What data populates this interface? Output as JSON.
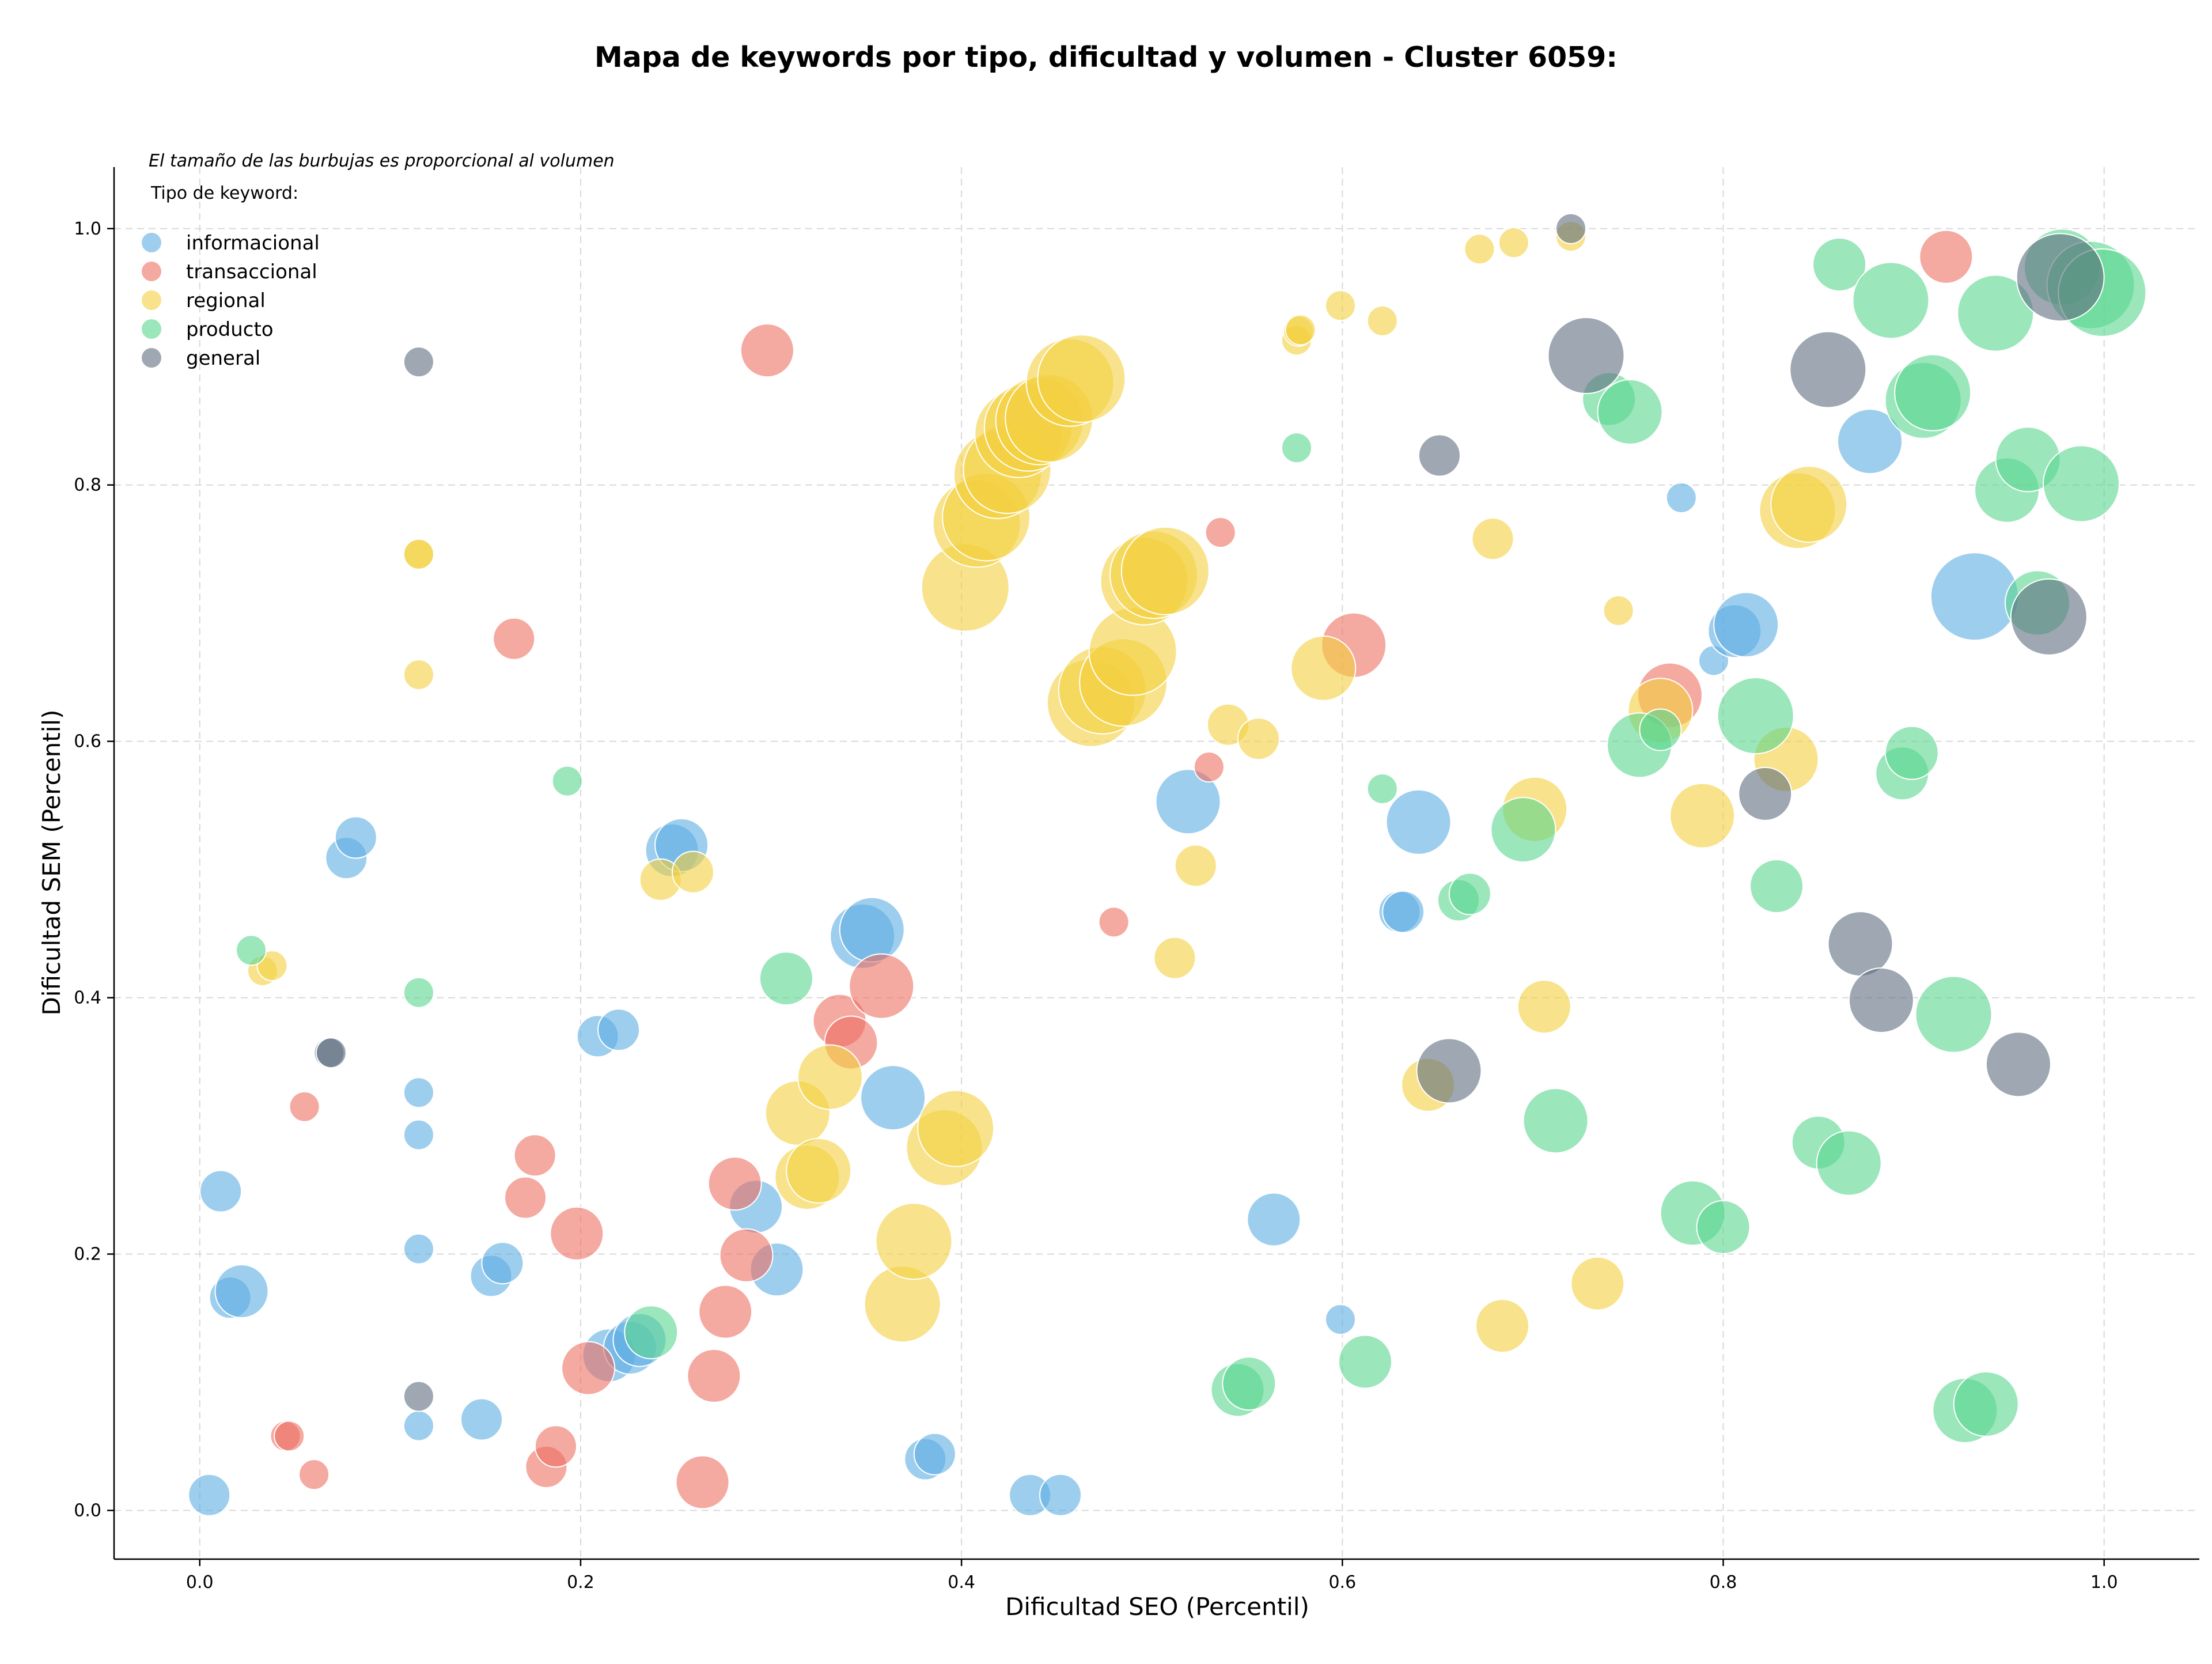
{
  "chart_data": {
    "type": "scatter",
    "title": "Mapa de keywords por tipo, dificultad y volumen - Cluster 6059:",
    "xlabel": "Dificultad SEO (Percentil)",
    "ylabel": "Dificultad SEM (Percentil)",
    "xlim": [
      -0.045,
      1.05
    ],
    "ylim": [
      -0.038,
      1.048
    ],
    "xticks": [
      "0.0",
      "0.2",
      "0.4",
      "0.6",
      "0.8",
      "1.0"
    ],
    "yticks": [
      "0.0",
      "0.2",
      "0.4",
      "0.6",
      "0.8",
      "1.0"
    ],
    "grid": true,
    "legend_position": "top-left",
    "legend_note": "El tamaño de las burbujas es proporcional al volumen",
    "legend_title": "Tipo de keyword:",
    "series": [
      {
        "name": "informacional",
        "color": "#5dade2",
        "points": [
          [
            0.005,
            0.012,
            2
          ],
          [
            0.011,
            0.249,
            2
          ],
          [
            0.016,
            0.166,
            2
          ],
          [
            0.022,
            0.171,
            3
          ],
          [
            0.077,
            0.509,
            2
          ],
          [
            0.082,
            0.525,
            2
          ],
          [
            0.115,
            0.326,
            1
          ],
          [
            0.115,
            0.293,
            1
          ],
          [
            0.115,
            0.204,
            1
          ],
          [
            0.115,
            0.066,
            1
          ],
          [
            0.148,
            0.071,
            2
          ],
          [
            0.153,
            0.183,
            2
          ],
          [
            0.159,
            0.193,
            2
          ],
          [
            0.209,
            0.37,
            2
          ],
          [
            0.215,
            0.121,
            3
          ],
          [
            0.22,
            0.375,
            2
          ],
          [
            0.226,
            0.127,
            3
          ],
          [
            0.231,
            0.133,
            3
          ],
          [
            0.248,
            0.515,
            3
          ],
          [
            0.253,
            0.519,
            3
          ],
          [
            0.292,
            0.237,
            3
          ],
          [
            0.303,
            0.188,
            3
          ],
          [
            0.348,
            0.448,
            4
          ],
          [
            0.353,
            0.453,
            4
          ],
          [
            0.364,
            0.322,
            4
          ],
          [
            0.381,
            0.04,
            2
          ],
          [
            0.386,
            0.044,
            2
          ],
          [
            0.436,
            0.012,
            2
          ],
          [
            0.452,
            0.012,
            2
          ],
          [
            0.519,
            0.553,
            4
          ],
          [
            0.564,
            0.227,
            3
          ],
          [
            0.599,
            0.149,
            1
          ],
          [
            0.63,
            0.467,
            2
          ],
          [
            0.632,
            0.467,
            2
          ],
          [
            0.64,
            0.537,
            4
          ],
          [
            0.778,
            0.79,
            1
          ],
          [
            0.795,
            0.663,
            1
          ],
          [
            0.806,
            0.686,
            3
          ],
          [
            0.812,
            0.691,
            4
          ],
          [
            0.877,
            0.834,
            4
          ],
          [
            0.932,
            0.713,
            6
          ]
        ]
      },
      {
        "name": "transaccional",
        "color": "#ec7063",
        "points": [
          [
            0.045,
            0.058,
            1
          ],
          [
            0.047,
            0.058,
            1
          ],
          [
            0.055,
            0.315,
            1
          ],
          [
            0.06,
            0.028,
            1
          ],
          [
            0.165,
            0.68,
            2
          ],
          [
            0.171,
            0.244,
            2
          ],
          [
            0.176,
            0.277,
            2
          ],
          [
            0.182,
            0.034,
            2
          ],
          [
            0.187,
            0.05,
            2
          ],
          [
            0.198,
            0.216,
            3
          ],
          [
            0.204,
            0.111,
            3
          ],
          [
            0.264,
            0.022,
            3
          ],
          [
            0.27,
            0.105,
            3
          ],
          [
            0.276,
            0.155,
            3
          ],
          [
            0.281,
            0.255,
            3
          ],
          [
            0.287,
            0.199,
            3
          ],
          [
            0.298,
            0.905,
            3
          ],
          [
            0.336,
            0.382,
            3
          ],
          [
            0.342,
            0.365,
            3
          ],
          [
            0.358,
            0.409,
            4
          ],
          [
            0.48,
            0.459,
            1
          ],
          [
            0.53,
            0.58,
            1
          ],
          [
            0.536,
            0.763,
            1
          ],
          [
            0.606,
            0.675,
            4
          ],
          [
            0.772,
            0.636,
            4
          ],
          [
            0.917,
            0.978,
            3
          ]
        ]
      },
      {
        "name": "regional",
        "color": "#f4d03f",
        "points": [
          [
            0.033,
            0.421,
            1
          ],
          [
            0.038,
            0.425,
            1
          ],
          [
            0.115,
            0.746,
            1
          ],
          [
            0.115,
            0.746,
            1
          ],
          [
            0.115,
            0.652,
            1
          ],
          [
            0.242,
            0.492,
            2
          ],
          [
            0.259,
            0.498,
            2
          ],
          [
            0.314,
            0.31,
            4
          ],
          [
            0.319,
            0.26,
            4
          ],
          [
            0.325,
            0.265,
            4
          ],
          [
            0.331,
            0.338,
            4
          ],
          [
            0.369,
            0.161,
            5
          ],
          [
            0.375,
            0.21,
            5
          ],
          [
            0.391,
            0.283,
            5
          ],
          [
            0.397,
            0.298,
            5
          ],
          [
            0.402,
            0.72,
            6
          ],
          [
            0.408,
            0.77,
            6
          ],
          [
            0.413,
            0.775,
            6
          ],
          [
            0.419,
            0.808,
            6
          ],
          [
            0.424,
            0.812,
            6
          ],
          [
            0.43,
            0.84,
            6
          ],
          [
            0.435,
            0.845,
            6
          ],
          [
            0.441,
            0.85,
            6
          ],
          [
            0.446,
            0.852,
            6
          ],
          [
            0.457,
            0.88,
            6
          ],
          [
            0.463,
            0.883,
            6
          ],
          [
            0.468,
            0.63,
            6
          ],
          [
            0.474,
            0.64,
            6
          ],
          [
            0.485,
            0.646,
            6
          ],
          [
            0.49,
            0.67,
            6
          ],
          [
            0.496,
            0.725,
            6
          ],
          [
            0.501,
            0.73,
            6
          ],
          [
            0.507,
            0.733,
            6
          ],
          [
            0.512,
            0.431,
            2
          ],
          [
            0.523,
            0.503,
            2
          ],
          [
            0.54,
            0.613,
            2
          ],
          [
            0.556,
            0.602,
            2
          ],
          [
            0.576,
            0.913,
            1
          ],
          [
            0.577,
            0.92,
            1
          ],
          [
            0.578,
            0.921,
            1
          ],
          [
            0.59,
            0.657,
            4
          ],
          [
            0.599,
            0.94,
            1
          ],
          [
            0.621,
            0.928,
            1
          ],
          [
            0.645,
            0.332,
            3
          ],
          [
            0.672,
            0.984,
            1
          ],
          [
            0.679,
            0.758,
            2
          ],
          [
            0.684,
            0.144,
            3
          ],
          [
            0.69,
            0.989,
            1
          ],
          [
            0.701,
            0.547,
            4
          ],
          [
            0.706,
            0.393,
            3
          ],
          [
            0.72,
            0.994,
            1
          ],
          [
            0.734,
            0.177,
            3
          ],
          [
            0.745,
            0.702,
            1
          ],
          [
            0.767,
            0.624,
            4
          ],
          [
            0.789,
            0.542,
            4
          ],
          [
            0.833,
            0.586,
            4
          ],
          [
            0.839,
            0.78,
            5
          ],
          [
            0.845,
            0.785,
            5
          ]
        ]
      },
      {
        "name": "producto",
        "color": "#58d68d",
        "points": [
          [
            0.027,
            0.437,
            1
          ],
          [
            0.115,
            0.404,
            1
          ],
          [
            0.193,
            0.569,
            1
          ],
          [
            0.237,
            0.139,
            3
          ],
          [
            0.308,
            0.415,
            3
          ],
          [
            0.545,
            0.094,
            3
          ],
          [
            0.551,
            0.099,
            3
          ],
          [
            0.576,
            0.829,
            1
          ],
          [
            0.612,
            0.116,
            3
          ],
          [
            0.621,
            0.563,
            1
          ],
          [
            0.661,
            0.476,
            2
          ],
          [
            0.667,
            0.481,
            2
          ],
          [
            0.695,
            0.531,
            4
          ],
          [
            0.712,
            0.304,
            4
          ],
          [
            0.74,
            0.867,
            3
          ],
          [
            0.751,
            0.857,
            4
          ],
          [
            0.756,
            0.597,
            4
          ],
          [
            0.767,
            0.609,
            2
          ],
          [
            0.784,
            0.232,
            4
          ],
          [
            0.8,
            0.221,
            3
          ],
          [
            0.817,
            0.62,
            5
          ],
          [
            0.828,
            0.487,
            3
          ],
          [
            0.85,
            0.287,
            3
          ],
          [
            0.861,
            0.972,
            3
          ],
          [
            0.866,
            0.271,
            4
          ],
          [
            0.888,
            0.944,
            5
          ],
          [
            0.894,
            0.575,
            3
          ],
          [
            0.899,
            0.591,
            3
          ],
          [
            0.905,
            0.866,
            5
          ],
          [
            0.91,
            0.872,
            5
          ],
          [
            0.921,
            0.387,
            5
          ],
          [
            0.927,
            0.078,
            4
          ],
          [
            0.938,
            0.083,
            4
          ],
          [
            0.943,
            0.934,
            5
          ],
          [
            0.949,
            0.796,
            4
          ],
          [
            0.96,
            0.82,
            4
          ],
          [
            0.965,
            0.708,
            4
          ],
          [
            0.978,
            0.97,
            5
          ],
          [
            0.988,
            0.801,
            5
          ],
          [
            0.993,
            0.956,
            6
          ],
          [
            0.999,
            0.95,
            6
          ]
        ]
      },
      {
        "name": "general",
        "color": "#5d6d7e",
        "points": [
          [
            0.068,
            0.357,
            1
          ],
          [
            0.069,
            0.357,
            1
          ],
          [
            0.115,
            0.896,
            1
          ],
          [
            0.115,
            0.089,
            1
          ],
          [
            0.651,
            0.823,
            2
          ],
          [
            0.656,
            0.343,
            4
          ],
          [
            0.72,
            1.0,
            1
          ],
          [
            0.728,
            0.901,
            5
          ],
          [
            0.822,
            0.559,
            3
          ],
          [
            0.855,
            0.89,
            5
          ],
          [
            0.872,
            0.442,
            4
          ],
          [
            0.883,
            0.398,
            4
          ],
          [
            0.955,
            0.348,
            4
          ],
          [
            0.971,
            0.697,
            5
          ],
          [
            0.977,
            0.962,
            6
          ]
        ]
      }
    ]
  }
}
